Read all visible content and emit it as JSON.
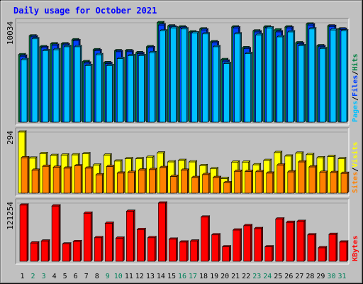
{
  "chart_data": {
    "type": "bar",
    "title": "Daily usage for October 2021",
    "categories": [
      "1",
      "2",
      "3",
      "4",
      "5",
      "6",
      "7",
      "8",
      "9",
      "10",
      "11",
      "12",
      "13",
      "14",
      "15",
      "16",
      "17",
      "18",
      "19",
      "20",
      "21",
      "22",
      "23",
      "24",
      "25",
      "26",
      "27",
      "28",
      "29",
      "30",
      "31"
    ],
    "weekend_days": [
      "2",
      "3",
      "9",
      "10",
      "16",
      "17",
      "23",
      "24",
      "30",
      "31"
    ],
    "panels": [
      {
        "name": "hits-files-pages",
        "y_tick_label": "10034",
        "ylim": [
          0,
          10034
        ],
        "legend": [
          {
            "text": "Hits",
            "color": "#008040"
          },
          {
            "text": "/",
            "color": "#000000"
          },
          {
            "text": "Files",
            "color": "#0040ff"
          },
          {
            "text": "/",
            "color": "#000000"
          },
          {
            "text": "Pages",
            "color": "#00c0ff"
          }
        ],
        "series": [
          {
            "name": "Hits",
            "color": "#008040",
            "values": [
              6800,
              8700,
              7600,
              7900,
              7900,
              8300,
              6100,
              7300,
              6000,
              7200,
              7200,
              7000,
              7600,
              10034,
              9700,
              9600,
              9100,
              9400,
              8100,
              6300,
              9600,
              7500,
              9200,
              9600,
              9300,
              9600,
              8000,
              9900,
              7700,
              9700,
              9400
            ]
          },
          {
            "name": "Files",
            "color": "#0040ff",
            "values": [
              6650,
              8600,
              7500,
              7750,
              7800,
              8200,
              5950,
              7200,
              5900,
              7100,
              7100,
              6900,
              7500,
              9800,
              9600,
              9500,
              9000,
              9300,
              8000,
              6150,
              9500,
              7400,
              9100,
              9500,
              9100,
              9500,
              7900,
              9800,
              7600,
              9650,
              9350
            ]
          },
          {
            "name": "Pages",
            "color": "#00c0ff",
            "values": [
              6300,
              8400,
              7200,
              7300,
              7600,
              7600,
              5700,
              6800,
              5700,
              6400,
              6700,
              6700,
              7000,
              9200,
              9500,
              9400,
              9000,
              8900,
              7600,
              5900,
              8900,
              6900,
              8800,
              9500,
              8600,
              9100,
              7700,
              9400,
              7400,
              9300,
              9200
            ]
          }
        ]
      },
      {
        "name": "visits-sites",
        "y_tick_label": "294",
        "ylim": [
          0,
          294
        ],
        "legend": [
          {
            "text": "Visits",
            "color": "#ffff00"
          },
          {
            "text": "/",
            "color": "#000000"
          },
          {
            "text": "Sites",
            "color": "#ff8000"
          }
        ],
        "series": [
          {
            "name": "Visits",
            "color": "#ffff00",
            "values": [
              294,
              168,
              190,
              181,
              183,
              184,
              189,
              135,
              183,
              154,
              165,
              165,
              173,
              193,
              150,
              157,
              150,
              132,
              117,
              70,
              149,
              149,
              136,
              157,
              195,
              178,
              192,
              185,
              170,
              176,
              165
            ]
          },
          {
            "name": "Sites",
            "color": "#ff8000",
            "values": [
              170,
              110,
              129,
              124,
              120,
              131,
              120,
              88,
              128,
              96,
              100,
              111,
              113,
              123,
              80,
              110,
              75,
              89,
              75,
              50,
              105,
              104,
              103,
              96,
              135,
              102,
              150,
              126,
              100,
              99,
              95
            ]
          }
        ]
      },
      {
        "name": "kbytes",
        "y_tick_label": "121254",
        "ylim": [
          0,
          121254
        ],
        "legend": [
          {
            "text": "KBytes",
            "color": "#ff0000"
          }
        ],
        "series": [
          {
            "name": "KBytes",
            "color": "#ff0000",
            "values": [
              117000,
              38000,
              42000,
              115000,
              36000,
              41000,
              100000,
              49000,
              79000,
              48000,
              104000,
              66000,
              49000,
              121254,
              46000,
              40000,
              42000,
              92000,
              55000,
              30000,
              65000,
              74000,
              68000,
              30000,
              88000,
              81000,
              83000,
              55000,
              28000,
              56000,
              40000
            ]
          }
        ]
      }
    ]
  }
}
